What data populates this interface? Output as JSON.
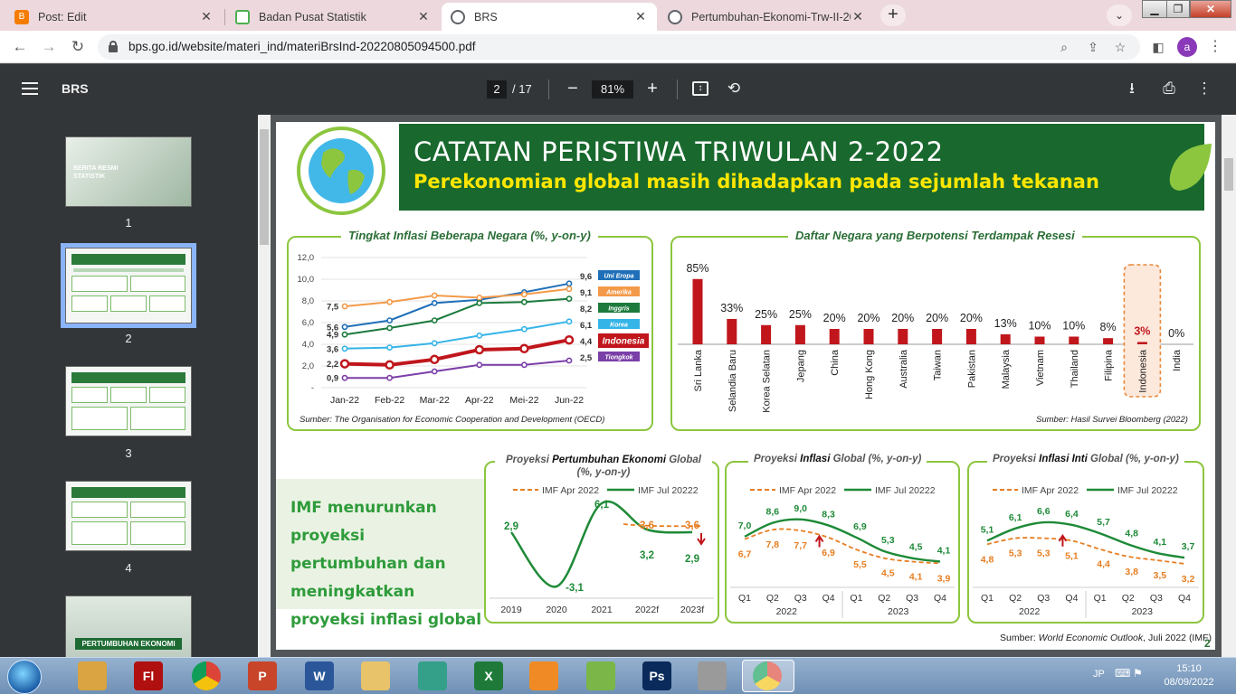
{
  "browser": {
    "tabs": [
      {
        "label": "Post: Edit",
        "icon": "blogger-icon",
        "color": "#f57c00"
      },
      {
        "label": "Badan Pusat Statistik",
        "icon": "bps-icon",
        "color": "#4caf50"
      },
      {
        "label": "BRS",
        "icon": "globe-icon",
        "color": "#5f6368"
      },
      {
        "label": "Pertumbuhan-Ekonomi-Trw-II-20",
        "icon": "globe-icon",
        "color": "#5f6368"
      }
    ],
    "url": "bps.go.id/website/materi_ind/materiBrsInd-20220805094500.pdf",
    "profile_initial": "a"
  },
  "pdf": {
    "title": "BRS",
    "current_page": "2",
    "total_pages": "/ 17",
    "zoom": "81%"
  },
  "thumbnails": [
    "1",
    "2",
    "3",
    "4"
  ],
  "thumb1": {
    "line1": "BERITA RESMI",
    "line2": "STATISTIK"
  },
  "thumb5": {
    "text": "PERTUMBUHAN EKONOMI"
  },
  "page": {
    "title": "CATATAN PERISTIWA TRIWULAN 2-2022",
    "subtitle": "Perekonomian global masih dihadapkan pada sejumlah tekanan",
    "imf_text": "IMF menurunkan proyeksi pertumbuhan dan meningkatkan proyeksi inflasi global",
    "page_number": "2",
    "source_bottom_label": "Sumber:",
    "source_bottom": "World Economic Outlook",
    "source_bottom_tail": ", Juli 2022 (IMF)"
  },
  "chart_data": [
    {
      "type": "line",
      "title": "Tingkat Inflasi Beberapa Negara (%, y-on-y)",
      "categories": [
        "Jan-22",
        "Feb-22",
        "Mar-22",
        "Apr-22",
        "Mei-22",
        "Jun-22"
      ],
      "yticks": [
        "12,0",
        "10,0",
        "8,0",
        "6,0",
        "4,0",
        "2,0",
        "-"
      ],
      "ylim": [
        0,
        12
      ],
      "series": [
        {
          "name": "Uni Eropa",
          "color": "#1f6fb8",
          "values": [
            5.6,
            6.2,
            7.8,
            8.1,
            8.8,
            9.6
          ],
          "start_label": "5,6",
          "end_label": "9,6"
        },
        {
          "name": "Amerika",
          "color": "#f39a4a",
          "values": [
            7.5,
            7.9,
            8.5,
            8.3,
            8.6,
            9.1
          ],
          "start_label": "7,5",
          "end_label": "9,1"
        },
        {
          "name": "Inggris",
          "color": "#1b7a3c",
          "values": [
            4.9,
            5.5,
            6.2,
            7.8,
            7.9,
            8.2
          ],
          "start_label": "4,9",
          "end_label": "8,2"
        },
        {
          "name": "Korea",
          "color": "#35b4e8",
          "values": [
            3.6,
            3.7,
            4.1,
            4.8,
            5.4,
            6.1
          ],
          "start_label": "3,6",
          "end_label": "6,1"
        },
        {
          "name": "Indonesia",
          "color": "#c0161c",
          "values": [
            2.2,
            2.1,
            2.6,
            3.5,
            3.6,
            4.4
          ],
          "start_label": "2,2",
          "end_label": "4,4"
        },
        {
          "name": "Tiongkok",
          "color": "#7b3fa8",
          "values": [
            0.9,
            0.9,
            1.5,
            2.1,
            2.1,
            2.5
          ],
          "start_label": "0,9",
          "end_label": "2,5"
        }
      ],
      "source": "Sumber: The Organisation for Economic Cooperation and Development (OECD)"
    },
    {
      "type": "bar",
      "title": "Daftar Negara yang Berpotensi Terdampak Resesi",
      "categories": [
        "Sri Lanka",
        "Selandia Baru",
        "Korea Selatan",
        "Jepang",
        "China",
        "Hong Kong",
        "Australia",
        "Taiwan",
        "Pakistan",
        "Malaysia",
        "Vietnam",
        "Thailand",
        "Filipina",
        "Indonesia",
        "India"
      ],
      "values": [
        85,
        33,
        25,
        25,
        20,
        20,
        20,
        20,
        20,
        13,
        10,
        10,
        8,
        3,
        0
      ],
      "labels": [
        "85%",
        "33%",
        "25%",
        "25%",
        "20%",
        "20%",
        "20%",
        "20%",
        "20%",
        "13%",
        "10%",
        "10%",
        "8%",
        "3%",
        "0%"
      ],
      "color": "#c0161c",
      "highlight": "Indonesia",
      "source": "Sumber: Hasil Survei Bloomberg (2022)"
    },
    {
      "type": "line",
      "title_pre": "Proyeksi ",
      "title_bold": "Pertumbuhan Ekonomi",
      "title_post": " Global",
      "title_unit": "(%, y-on-y)",
      "categories": [
        "2019",
        "2020",
        "2021",
        "2022f",
        "2023f"
      ],
      "series": [
        {
          "name": "IMF Apr 2022",
          "style": "dashed",
          "color": "#e67e22",
          "values": [
            null,
            null,
            null,
            3.6,
            3.6
          ],
          "labels": [
            "",
            "",
            "",
            "3,6",
            "3,6"
          ]
        },
        {
          "name": "IMF Jul 20222",
          "style": "solid",
          "color": "#1e8a37",
          "values": [
            2.9,
            -3.1,
            6.1,
            3.2,
            2.9
          ],
          "labels": [
            "2,9",
            "-3,1",
            "6,1",
            "3,2",
            "2,9"
          ]
        }
      ]
    },
    {
      "type": "line",
      "title_pre": "Proyeksi ",
      "title_bold": "Inflasi",
      "title_post": " Global (%, y-on-y)",
      "categories": [
        "Q1",
        "Q2",
        "Q3",
        "Q4",
        "Q1",
        "Q2",
        "Q3",
        "Q4"
      ],
      "years": [
        "2022",
        "2023"
      ],
      "series": [
        {
          "name": "IMF Apr 2022",
          "style": "dashed",
          "color": "#e67e22",
          "values": [
            6.7,
            7.8,
            7.7,
            6.9,
            5.5,
            4.5,
            4.1,
            3.9
          ],
          "labels": [
            "6,7",
            "7,8",
            "7,7",
            "6,9",
            "5,5",
            "4,5",
            "4,1",
            "3,9"
          ]
        },
        {
          "name": "IMF Jul 20222",
          "style": "solid",
          "color": "#1e8a37",
          "values": [
            7.0,
            8.6,
            9.0,
            8.3,
            6.9,
            5.3,
            4.5,
            4.1
          ],
          "labels": [
            "7,0",
            "8,6",
            "9,0",
            "8,3",
            "6,9",
            "5,3",
            "4,5",
            "4,1"
          ]
        }
      ]
    },
    {
      "type": "line",
      "title_pre": "Proyeksi ",
      "title_bold": "Inflasi Inti",
      "title_post": " Global (%, y-on-y)",
      "categories": [
        "Q1",
        "Q2",
        "Q3",
        "Q4",
        "Q1",
        "Q2",
        "Q3",
        "Q4"
      ],
      "years": [
        "2022",
        "2023"
      ],
      "series": [
        {
          "name": "IMF Apr 2022",
          "style": "dashed",
          "color": "#e67e22",
          "values": [
            4.8,
            5.3,
            5.3,
            5.1,
            4.4,
            3.8,
            3.5,
            3.2
          ],
          "labels": [
            "4,8",
            "5,3",
            "5,3",
            "5,1",
            "4,4",
            "3,8",
            "3,5",
            "3,2"
          ]
        },
        {
          "name": "IMF Jul 20222",
          "style": "solid",
          "color": "#1e8a37",
          "values": [
            5.1,
            6.1,
            6.6,
            6.4,
            5.7,
            4.8,
            4.1,
            3.7
          ],
          "labels": [
            "5,1",
            "6,1",
            "6,6",
            "6,4",
            "5,7",
            "4,8",
            "4,1",
            "3,7"
          ]
        }
      ]
    }
  ],
  "taskbar": {
    "apps": [
      {
        "icon": "paint-icon",
        "label": ""
      },
      {
        "icon": "flash-icon",
        "label": "Fl"
      },
      {
        "icon": "chrome-icon",
        "label": ""
      },
      {
        "icon": "powerpoint-icon",
        "label": "P"
      },
      {
        "icon": "word-icon",
        "label": "W"
      },
      {
        "icon": "explorer-icon",
        "label": ""
      },
      {
        "icon": "filmora-icon",
        "label": ""
      },
      {
        "icon": "excel-icon",
        "label": "X"
      },
      {
        "icon": "media-player-icon",
        "label": ""
      },
      {
        "icon": "android-icon",
        "label": ""
      },
      {
        "icon": "photoshop-icon",
        "label": "Ps"
      },
      {
        "icon": "settings-icon",
        "label": ""
      },
      {
        "icon": "chrome-profile-icon",
        "label": ""
      }
    ],
    "language": "JP",
    "time": "15:10",
    "date": "08/09/2022"
  }
}
